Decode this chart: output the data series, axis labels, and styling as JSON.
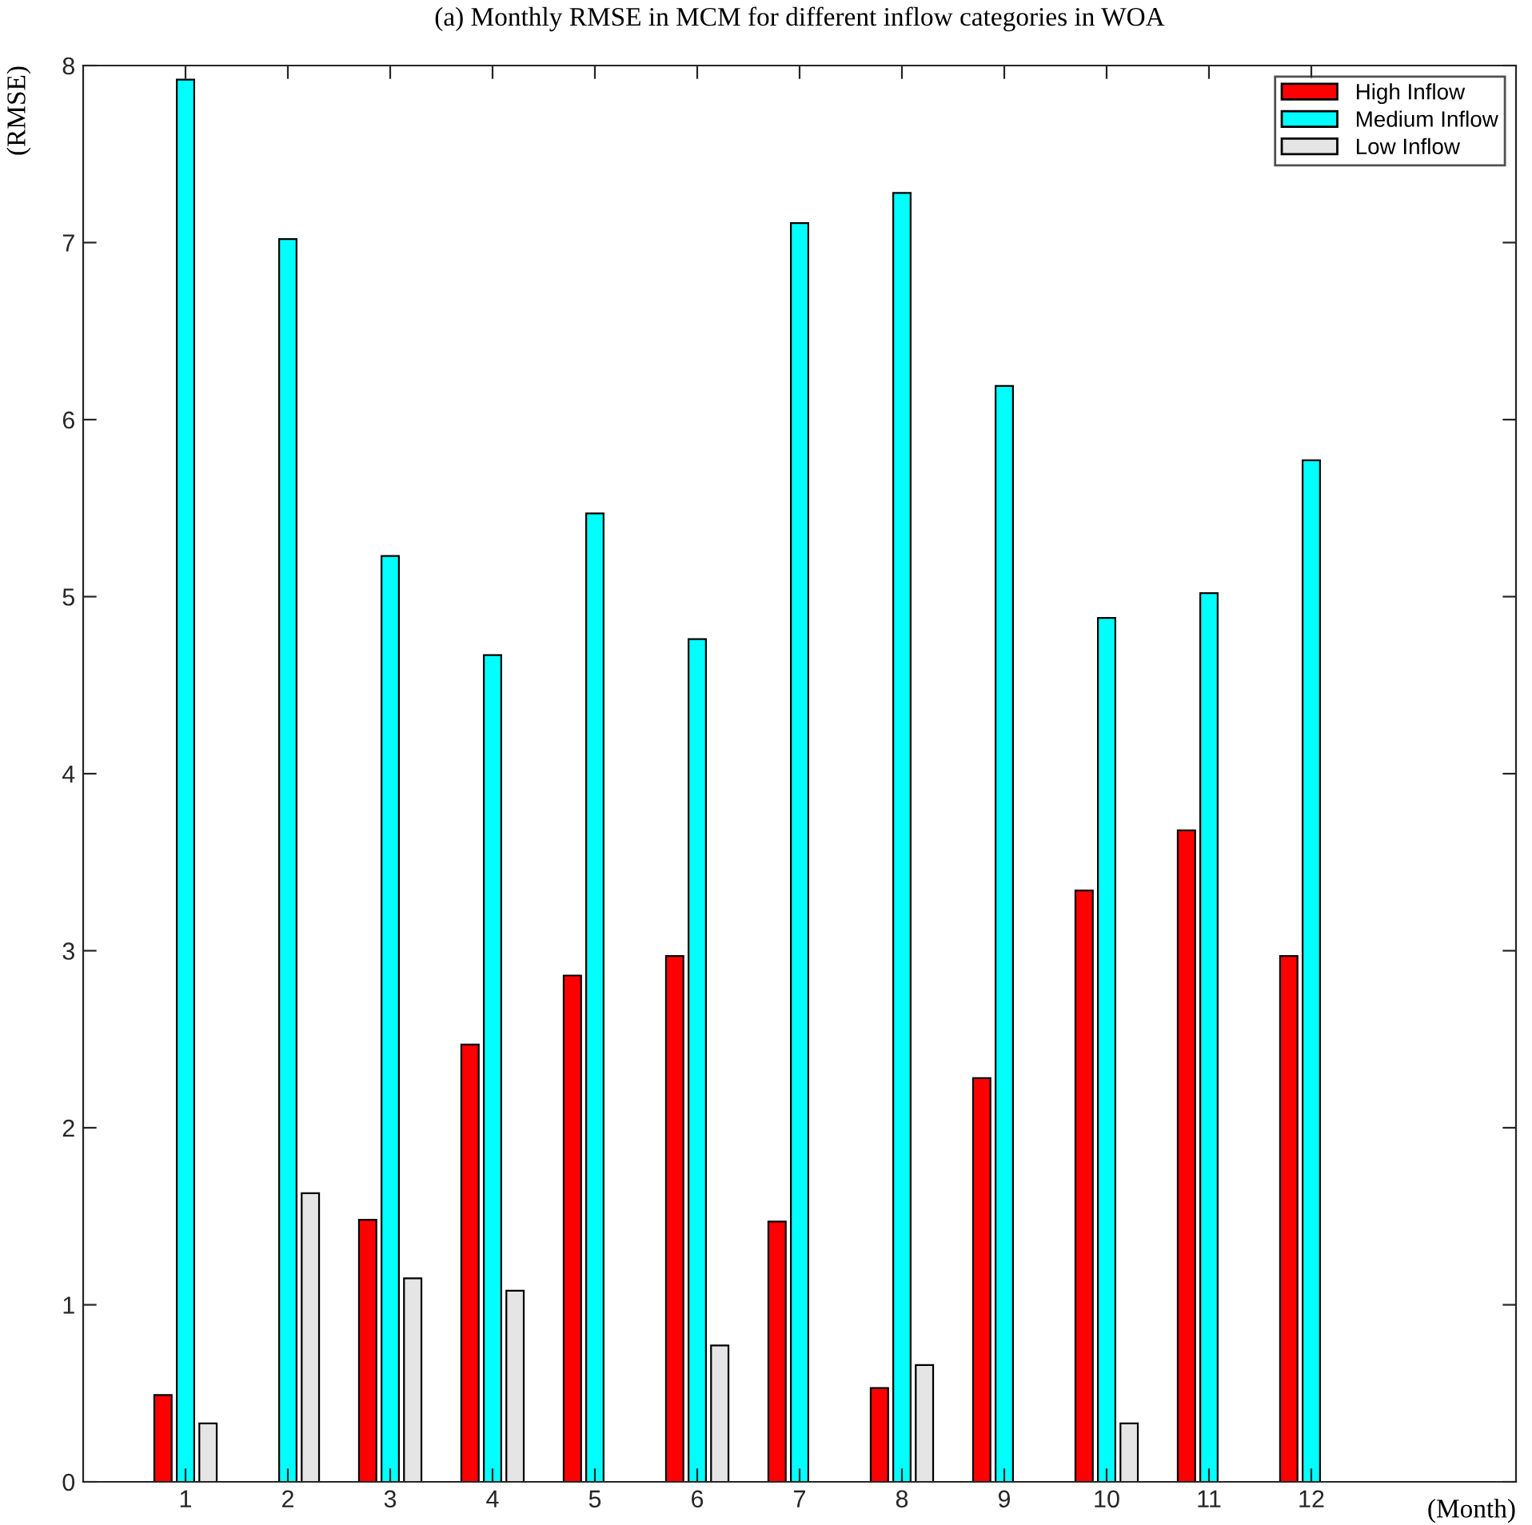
{
  "chart_data": {
    "type": "bar",
    "title": "(a) Monthly RMSE in MCM for different inflow categories in WOA",
    "xlabel": "(Month)",
    "ylabel": "(RMSE)",
    "x": [
      1,
      2,
      3,
      4,
      5,
      6,
      7,
      8,
      9,
      10,
      11,
      12
    ],
    "series": [
      {
        "name": "High Inflow",
        "color": "#ff0000",
        "values": [
          0.49,
          null,
          1.48,
          2.47,
          2.86,
          2.97,
          1.47,
          0.53,
          2.28,
          3.34,
          3.68,
          2.97
        ]
      },
      {
        "name": "Medium Inflow",
        "color": "#00ffff",
        "values": [
          7.92,
          7.02,
          5.23,
          4.67,
          5.47,
          4.76,
          7.11,
          7.28,
          6.19,
          4.88,
          5.02,
          5.77
        ]
      },
      {
        "name": "Low Inflow",
        "color": "#e5e5e5",
        "values": [
          0.33,
          1.63,
          1.15,
          1.08,
          null,
          0.77,
          null,
          0.66,
          null,
          0.33,
          null,
          null
        ]
      }
    ],
    "xlim": [
      0,
      14
    ],
    "xticks": [
      1,
      2,
      3,
      4,
      5,
      6,
      7,
      8,
      9,
      10,
      11,
      12
    ],
    "ylim": [
      0,
      8
    ],
    "yticks": [
      0,
      1,
      2,
      3,
      4,
      5,
      6,
      7,
      8
    ],
    "grid": false,
    "legend": "top right"
  }
}
